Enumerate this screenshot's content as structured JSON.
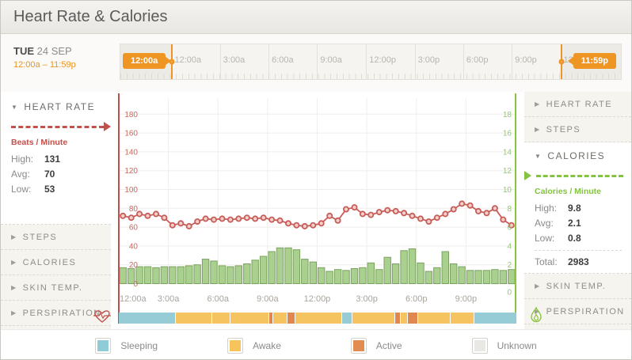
{
  "header": {
    "title": "Heart Rate & Calories"
  },
  "date_panel": {
    "day": "TUE",
    "date": "24 SEP",
    "range": "12:00a – 11:59p"
  },
  "timeline": {
    "start_handle": "12:00a",
    "end_handle": "11:59p",
    "ticks": [
      {
        "label": "12:00a",
        "pos": 10.2
      },
      {
        "label": "3:00a",
        "pos": 19.9
      },
      {
        "label": "6:00a",
        "pos": 29.6
      },
      {
        "label": "9:00a",
        "pos": 39.3
      },
      {
        "label": "12:00p",
        "pos": 49.1
      },
      {
        "label": "3:00p",
        "pos": 58.8
      },
      {
        "label": "6:00p",
        "pos": 68.5
      },
      {
        "label": "9:00p",
        "pos": 78.2
      },
      {
        "label": "12:00a",
        "pos": 87.9
      }
    ],
    "pin_start_pos": 10.2,
    "pin_end_pos": 87.9
  },
  "left_sidebar": {
    "heart_rate": {
      "title": "HEART RATE",
      "unit_label": "Beats / Minute",
      "stats": [
        {
          "label": "High:",
          "value": "131"
        },
        {
          "label": "Avg:",
          "value": "70"
        },
        {
          "label": "Low:",
          "value": "53"
        }
      ]
    },
    "items": [
      {
        "label": "STEPS"
      },
      {
        "label": "CALORIES"
      },
      {
        "label": "SKIN TEMP."
      },
      {
        "label": "PERSPIRATION"
      }
    ]
  },
  "right_sidebar": {
    "items_top": [
      {
        "label": "HEART RATE"
      },
      {
        "label": "STEPS"
      }
    ],
    "calories": {
      "title": "CALORIES",
      "unit_label": "Calories / Minute",
      "stats": [
        {
          "label": "High:",
          "value": "9.8"
        },
        {
          "label": "Avg:",
          "value": "2.1"
        },
        {
          "label": "Low:",
          "value": "0.8"
        }
      ],
      "total_label": "Total:",
      "total_value": "2983"
    },
    "items_bottom": [
      {
        "label": "SKIN TEMP."
      },
      {
        "label": "PERSPIRATION"
      }
    ]
  },
  "chart_data": {
    "type": "line+bar",
    "x_interval_minutes": 30,
    "x_tick_labels": [
      "12:00a",
      "3:00a",
      "6:00a",
      "9:00a",
      "12:00p",
      "3:00p",
      "6:00p",
      "9:00p"
    ],
    "left_axis": {
      "label": "Beats / Minute",
      "min": 0,
      "max": 180,
      "step": 20,
      "color": "#c96a64",
      "axis_line_color": "#bf4f4b"
    },
    "right_axis": {
      "label": "Calories / Minute",
      "min": 0,
      "max": 18,
      "step": 2,
      "color": "#94c873",
      "axis_line_color": "#8bc53f"
    },
    "series": [
      {
        "name": "Heart Rate",
        "type": "line",
        "axis": "left",
        "line_color": "#c75d58",
        "marker_fill": "#f4cfcb",
        "values": [
          72,
          70,
          74,
          72,
          74,
          70,
          62,
          64,
          61,
          66,
          69,
          68,
          69,
          68,
          69,
          70,
          69,
          70,
          68,
          67,
          64,
          62,
          61,
          62,
          64,
          72,
          67,
          79,
          81,
          74,
          73,
          76,
          78,
          77,
          75,
          72,
          69,
          66,
          70,
          74,
          79,
          85,
          83,
          77,
          75,
          80,
          68,
          62
        ]
      },
      {
        "name": "Calories",
        "type": "bar",
        "axis": "right",
        "bar_fill": "#a9d08f",
        "bar_stroke": "#7aa25e",
        "values": [
          1.7,
          1.6,
          1.8,
          1.8,
          1.7,
          1.8,
          1.8,
          1.8,
          1.9,
          2.0,
          2.6,
          2.4,
          1.9,
          1.8,
          1.9,
          2.1,
          2.5,
          2.9,
          3.4,
          3.8,
          3.8,
          3.6,
          2.6,
          2.3,
          1.7,
          1.3,
          1.5,
          1.4,
          1.6,
          1.7,
          2.2,
          1.5,
          2.8,
          2.1,
          3.5,
          3.7,
          2.2,
          1.3,
          1.7,
          3.4,
          2.1,
          1.8,
          1.4,
          1.4,
          1.4,
          1.5,
          1.4,
          1.5
        ]
      }
    ],
    "grid": true
  },
  "activity_strip": {
    "colors": {
      "sleeping": "#96ccd6",
      "awake": "#f5c360",
      "active": "#e0874f",
      "unknown": "#e9e8e4"
    },
    "segments": [
      {
        "state": "sleeping",
        "width": 14.2
      },
      {
        "state": "awake",
        "width": 9.2
      },
      {
        "state": "awake",
        "width": 4.4
      },
      {
        "state": "awake",
        "width": 9.8
      },
      {
        "state": "active",
        "width": 1.0
      },
      {
        "state": "awake",
        "width": 3.7
      },
      {
        "state": "active",
        "width": 2.0
      },
      {
        "state": "awake",
        "width": 11.7
      },
      {
        "state": "sleeping",
        "width": 2.5
      },
      {
        "state": "awake",
        "width": 10.8
      },
      {
        "state": "active",
        "width": 1.5
      },
      {
        "state": "awake",
        "width": 1.7
      },
      {
        "state": "active",
        "width": 2.6
      },
      {
        "state": "awake",
        "width": 8.2
      },
      {
        "state": "awake",
        "width": 5.9
      },
      {
        "state": "sleeping",
        "width": 10.8
      }
    ]
  },
  "legend": {
    "items": [
      {
        "label": "Sleeping",
        "color": "#8fccd8"
      },
      {
        "label": "Awake",
        "color": "#f5c45c"
      },
      {
        "label": "Active",
        "color": "#e28c51"
      },
      {
        "label": "Unknown",
        "color": "#e9e8e4"
      }
    ]
  }
}
